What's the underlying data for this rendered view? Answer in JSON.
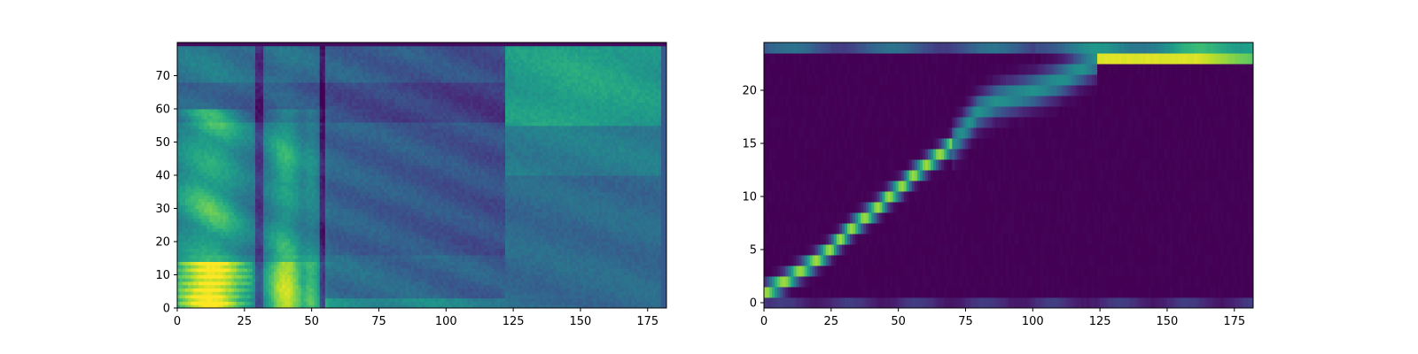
{
  "figure": {
    "background": "#ffffff",
    "colormap": "viridis"
  },
  "chart_data": [
    {
      "type": "heatmap",
      "name": "mel-spectrogram",
      "title": "",
      "xlabel": "",
      "ylabel": "",
      "xlim": [
        0,
        182
      ],
      "ylim": [
        0,
        80
      ],
      "grid": false,
      "colormap": "viridis",
      "x_ticks": [
        0,
        25,
        50,
        75,
        100,
        125,
        150,
        175
      ],
      "y_ticks": [
        0,
        10,
        20,
        30,
        40,
        50,
        60,
        70
      ],
      "cells": {
        "cols": 182,
        "rows": 80
      }
    },
    {
      "type": "heatmap",
      "name": "attention-alignment",
      "title": "",
      "xlabel": "",
      "ylabel": "",
      "xlim": [
        0,
        182
      ],
      "ylim": [
        -0.5,
        24.5
      ],
      "grid": false,
      "colormap": "viridis",
      "x_ticks": [
        0,
        25,
        50,
        75,
        100,
        125,
        150,
        175
      ],
      "y_ticks": [
        0,
        5,
        10,
        15,
        20
      ],
      "cells": {
        "cols": 182,
        "rows": 25
      },
      "alignment_path": [
        {
          "x": 0,
          "y": 1
        },
        {
          "x": 7,
          "y": 2
        },
        {
          "x": 13,
          "y": 3
        },
        {
          "x": 19,
          "y": 4
        },
        {
          "x": 24,
          "y": 5
        },
        {
          "x": 28,
          "y": 6
        },
        {
          "x": 32,
          "y": 7
        },
        {
          "x": 37,
          "y": 8
        },
        {
          "x": 42,
          "y": 9
        },
        {
          "x": 46,
          "y": 10
        },
        {
          "x": 51,
          "y": 11
        },
        {
          "x": 55,
          "y": 12
        },
        {
          "x": 60,
          "y": 13
        },
        {
          "x": 65,
          "y": 14
        },
        {
          "x": 70,
          "y": 15
        },
        {
          "x": 73,
          "y": 16
        },
        {
          "x": 76,
          "y": 17
        },
        {
          "x": 79,
          "y": 18
        },
        {
          "x": 86,
          "y": 19
        },
        {
          "x": 100,
          "y": 20
        },
        {
          "x": 110,
          "y": 21
        },
        {
          "x": 124,
          "y": 23
        },
        {
          "x": 182,
          "y": 23
        }
      ]
    }
  ]
}
